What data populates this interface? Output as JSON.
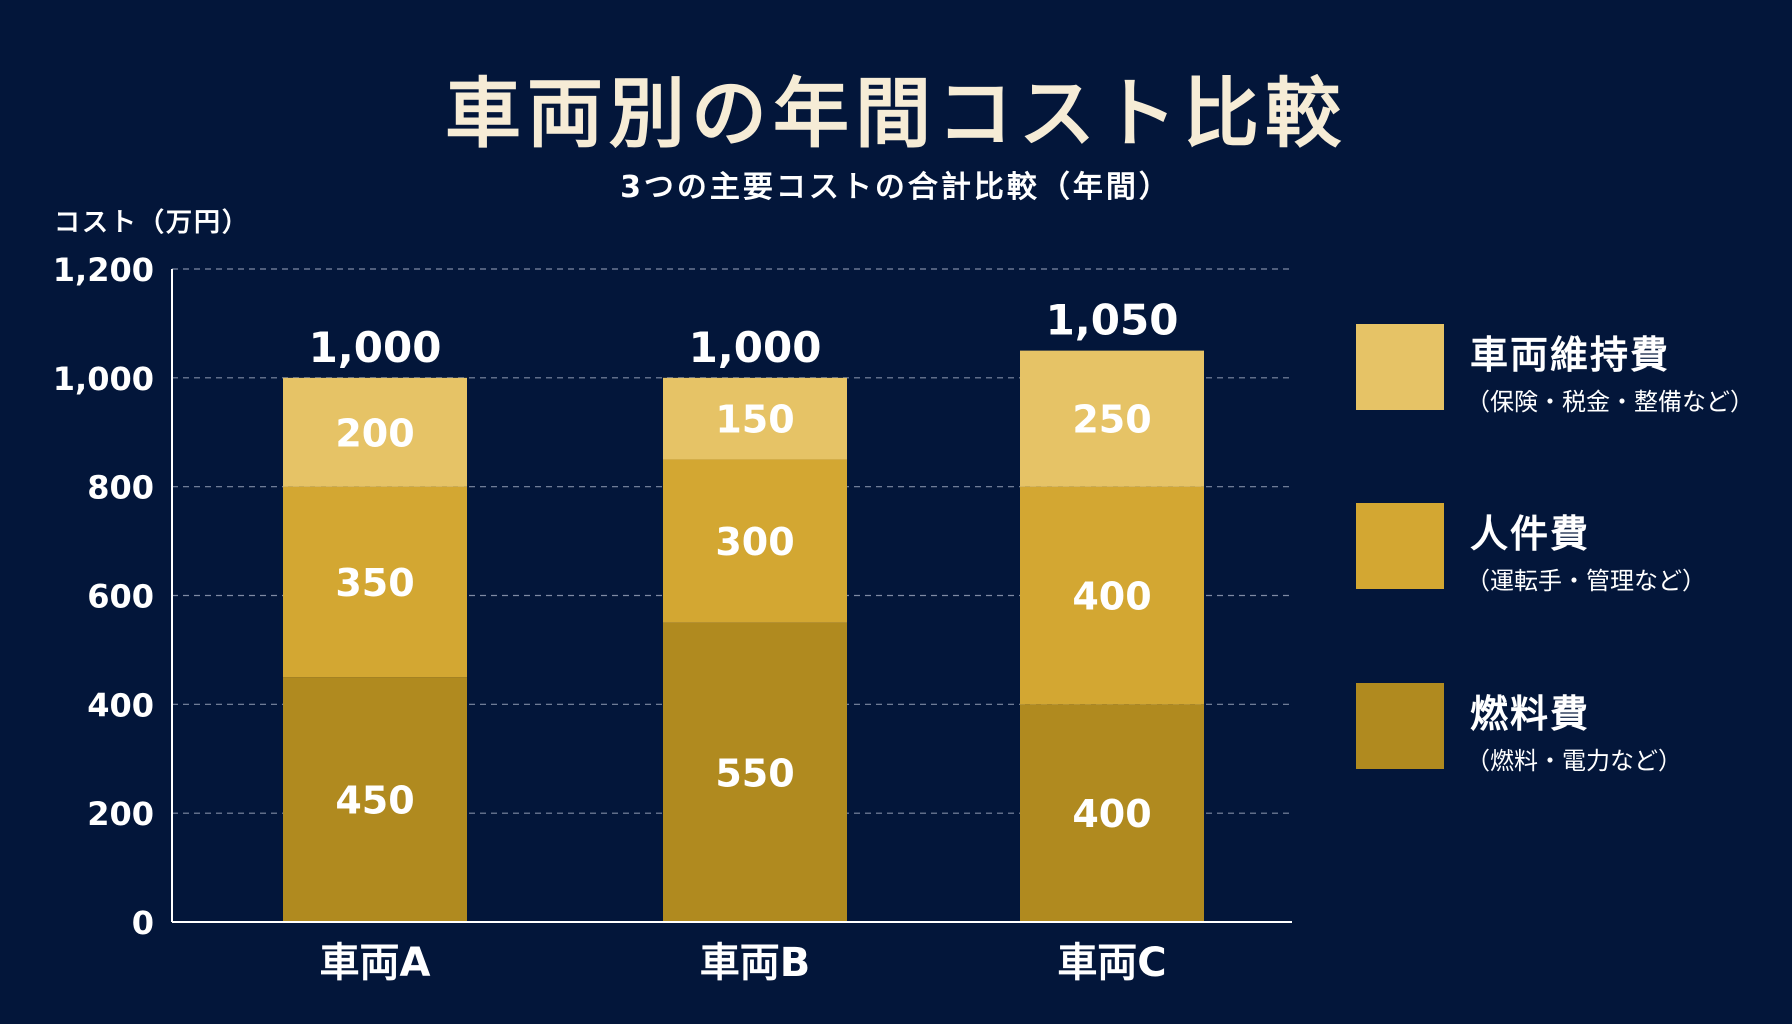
{
  "chart_data": {
    "type": "bar",
    "stacked": true,
    "title": "車両別の年間コスト比較",
    "subtitle": "3つの主要コストの合計比較（年間）",
    "ylabel": "コスト（万円）",
    "xlabel": "",
    "ylim": [
      0,
      1200
    ],
    "yticks": [
      0,
      200,
      400,
      600,
      800,
      1000,
      1200
    ],
    "ytick_labels": [
      "0",
      "200",
      "400",
      "600",
      "800",
      "1,000",
      "1,200"
    ],
    "grid": true,
    "legend_position": "right",
    "categories": [
      "車両A",
      "車両B",
      "車両C"
    ],
    "series": [
      {
        "name": "燃料費",
        "note": "（燃料・電力など）",
        "color": "#b08a1f",
        "values": [
          450,
          550,
          400
        ]
      },
      {
        "name": "人件費",
        "note": "（運転手・管理など）",
        "color": "#d3a732",
        "values": [
          350,
          300,
          400
        ]
      },
      {
        "name": "車両維持費",
        "note": "（保険・税金・整備など）",
        "color": "#e6c366",
        "values": [
          200,
          150,
          250
        ]
      }
    ],
    "totals": [
      1000,
      1000,
      1050
    ],
    "total_labels": [
      "1,000",
      "1,000",
      "1,050"
    ]
  }
}
